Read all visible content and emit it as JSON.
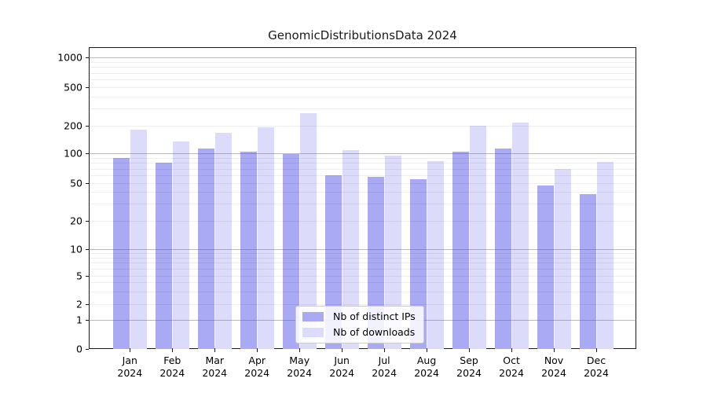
{
  "title": "GenomicDistributionsData 2024",
  "chart_data": {
    "type": "bar",
    "title": "GenomicDistributionsData 2024",
    "categories": [
      "Jan 2024",
      "Feb 2024",
      "Mar 2024",
      "Apr 2024",
      "May 2024",
      "Jun 2024",
      "Jul 2024",
      "Aug 2024",
      "Sep 2024",
      "Oct 2024",
      "Nov 2024",
      "Dec 2024"
    ],
    "series": [
      {
        "name": "Nb of distinct IPs",
        "color": "#a9aaf3",
        "values": [
          90,
          80,
          112,
          105,
          98,
          60,
          58,
          55,
          105,
          113,
          47,
          38
        ]
      },
      {
        "name": "Nb of downloads",
        "color": "#dcdcfa",
        "values": [
          180,
          136,
          168,
          190,
          270,
          108,
          95,
          84,
          200,
          213,
          70,
          82
        ]
      }
    ],
    "yscale": "symlog",
    "yticks": [
      0,
      1,
      2,
      5,
      10,
      20,
      50,
      100,
      200,
      500,
      1000
    ],
    "ylim": [
      0,
      1300
    ],
    "xlabel": "",
    "ylabel": "",
    "grid": "major+minor horizontal",
    "legend_position": "lower center",
    "colors": {
      "major_grid": "#b0b0b0",
      "minor_grid": "#ececec",
      "spine": "#1a1a1a"
    }
  }
}
